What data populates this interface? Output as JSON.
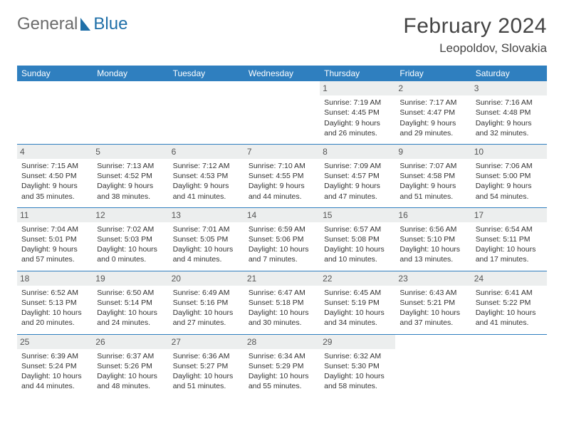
{
  "logo": {
    "part1": "General",
    "part2": "Blue"
  },
  "title": "February 2024",
  "location": "Leopoldov, Slovakia",
  "colors": {
    "header_bg": "#2f7fbf",
    "header_text": "#ffffff",
    "daynum_bg": "#eceeee",
    "border": "#2f7fbf",
    "logo_gray": "#6b6b6b",
    "logo_blue": "#1f6fa8"
  },
  "days_of_week": [
    "Sunday",
    "Monday",
    "Tuesday",
    "Wednesday",
    "Thursday",
    "Friday",
    "Saturday"
  ],
  "weeks": [
    [
      {
        "n": "",
        "sr": "",
        "ss": "",
        "dl": ""
      },
      {
        "n": "",
        "sr": "",
        "ss": "",
        "dl": ""
      },
      {
        "n": "",
        "sr": "",
        "ss": "",
        "dl": ""
      },
      {
        "n": "",
        "sr": "",
        "ss": "",
        "dl": ""
      },
      {
        "n": "1",
        "sr": "Sunrise: 7:19 AM",
        "ss": "Sunset: 4:45 PM",
        "dl": "Daylight: 9 hours and 26 minutes."
      },
      {
        "n": "2",
        "sr": "Sunrise: 7:17 AM",
        "ss": "Sunset: 4:47 PM",
        "dl": "Daylight: 9 hours and 29 minutes."
      },
      {
        "n": "3",
        "sr": "Sunrise: 7:16 AM",
        "ss": "Sunset: 4:48 PM",
        "dl": "Daylight: 9 hours and 32 minutes."
      }
    ],
    [
      {
        "n": "4",
        "sr": "Sunrise: 7:15 AM",
        "ss": "Sunset: 4:50 PM",
        "dl": "Daylight: 9 hours and 35 minutes."
      },
      {
        "n": "5",
        "sr": "Sunrise: 7:13 AM",
        "ss": "Sunset: 4:52 PM",
        "dl": "Daylight: 9 hours and 38 minutes."
      },
      {
        "n": "6",
        "sr": "Sunrise: 7:12 AM",
        "ss": "Sunset: 4:53 PM",
        "dl": "Daylight: 9 hours and 41 minutes."
      },
      {
        "n": "7",
        "sr": "Sunrise: 7:10 AM",
        "ss": "Sunset: 4:55 PM",
        "dl": "Daylight: 9 hours and 44 minutes."
      },
      {
        "n": "8",
        "sr": "Sunrise: 7:09 AM",
        "ss": "Sunset: 4:57 PM",
        "dl": "Daylight: 9 hours and 47 minutes."
      },
      {
        "n": "9",
        "sr": "Sunrise: 7:07 AM",
        "ss": "Sunset: 4:58 PM",
        "dl": "Daylight: 9 hours and 51 minutes."
      },
      {
        "n": "10",
        "sr": "Sunrise: 7:06 AM",
        "ss": "Sunset: 5:00 PM",
        "dl": "Daylight: 9 hours and 54 minutes."
      }
    ],
    [
      {
        "n": "11",
        "sr": "Sunrise: 7:04 AM",
        "ss": "Sunset: 5:01 PM",
        "dl": "Daylight: 9 hours and 57 minutes."
      },
      {
        "n": "12",
        "sr": "Sunrise: 7:02 AM",
        "ss": "Sunset: 5:03 PM",
        "dl": "Daylight: 10 hours and 0 minutes."
      },
      {
        "n": "13",
        "sr": "Sunrise: 7:01 AM",
        "ss": "Sunset: 5:05 PM",
        "dl": "Daylight: 10 hours and 4 minutes."
      },
      {
        "n": "14",
        "sr": "Sunrise: 6:59 AM",
        "ss": "Sunset: 5:06 PM",
        "dl": "Daylight: 10 hours and 7 minutes."
      },
      {
        "n": "15",
        "sr": "Sunrise: 6:57 AM",
        "ss": "Sunset: 5:08 PM",
        "dl": "Daylight: 10 hours and 10 minutes."
      },
      {
        "n": "16",
        "sr": "Sunrise: 6:56 AM",
        "ss": "Sunset: 5:10 PM",
        "dl": "Daylight: 10 hours and 13 minutes."
      },
      {
        "n": "17",
        "sr": "Sunrise: 6:54 AM",
        "ss": "Sunset: 5:11 PM",
        "dl": "Daylight: 10 hours and 17 minutes."
      }
    ],
    [
      {
        "n": "18",
        "sr": "Sunrise: 6:52 AM",
        "ss": "Sunset: 5:13 PM",
        "dl": "Daylight: 10 hours and 20 minutes."
      },
      {
        "n": "19",
        "sr": "Sunrise: 6:50 AM",
        "ss": "Sunset: 5:14 PM",
        "dl": "Daylight: 10 hours and 24 minutes."
      },
      {
        "n": "20",
        "sr": "Sunrise: 6:49 AM",
        "ss": "Sunset: 5:16 PM",
        "dl": "Daylight: 10 hours and 27 minutes."
      },
      {
        "n": "21",
        "sr": "Sunrise: 6:47 AM",
        "ss": "Sunset: 5:18 PM",
        "dl": "Daylight: 10 hours and 30 minutes."
      },
      {
        "n": "22",
        "sr": "Sunrise: 6:45 AM",
        "ss": "Sunset: 5:19 PM",
        "dl": "Daylight: 10 hours and 34 minutes."
      },
      {
        "n": "23",
        "sr": "Sunrise: 6:43 AM",
        "ss": "Sunset: 5:21 PM",
        "dl": "Daylight: 10 hours and 37 minutes."
      },
      {
        "n": "24",
        "sr": "Sunrise: 6:41 AM",
        "ss": "Sunset: 5:22 PM",
        "dl": "Daylight: 10 hours and 41 minutes."
      }
    ],
    [
      {
        "n": "25",
        "sr": "Sunrise: 6:39 AM",
        "ss": "Sunset: 5:24 PM",
        "dl": "Daylight: 10 hours and 44 minutes."
      },
      {
        "n": "26",
        "sr": "Sunrise: 6:37 AM",
        "ss": "Sunset: 5:26 PM",
        "dl": "Daylight: 10 hours and 48 minutes."
      },
      {
        "n": "27",
        "sr": "Sunrise: 6:36 AM",
        "ss": "Sunset: 5:27 PM",
        "dl": "Daylight: 10 hours and 51 minutes."
      },
      {
        "n": "28",
        "sr": "Sunrise: 6:34 AM",
        "ss": "Sunset: 5:29 PM",
        "dl": "Daylight: 10 hours and 55 minutes."
      },
      {
        "n": "29",
        "sr": "Sunrise: 6:32 AM",
        "ss": "Sunset: 5:30 PM",
        "dl": "Daylight: 10 hours and 58 minutes."
      },
      {
        "n": "",
        "sr": "",
        "ss": "",
        "dl": ""
      },
      {
        "n": "",
        "sr": "",
        "ss": "",
        "dl": ""
      }
    ]
  ]
}
